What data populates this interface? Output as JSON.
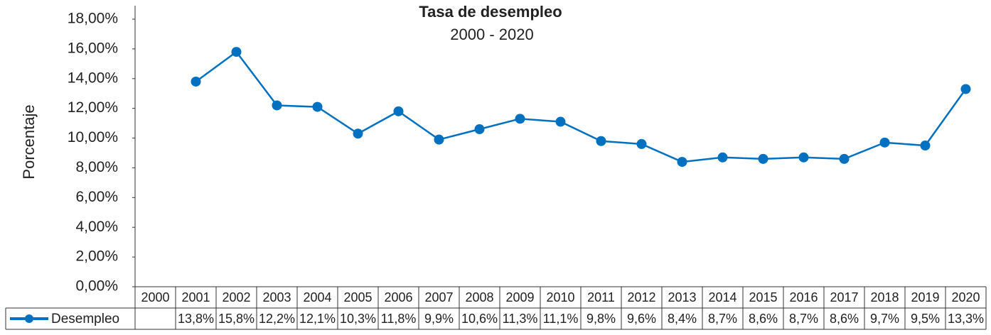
{
  "chart_data": {
    "type": "line",
    "title": "Tasa de desempleo",
    "subtitle": "2000 - 2020",
    "y_label": "Porcentaje",
    "categories": [
      "2000",
      "2001",
      "2002",
      "2003",
      "2004",
      "2005",
      "2006",
      "2007",
      "2008",
      "2009",
      "2010",
      "2011",
      "2012",
      "2013",
      "2014",
      "2015",
      "2016",
      "2017",
      "2018",
      "2019",
      "2020"
    ],
    "series": [
      {
        "name": "Desempleo",
        "color": "#0070c0",
        "values": [
          null,
          13.8,
          15.8,
          12.2,
          12.1,
          10.3,
          11.8,
          9.9,
          10.6,
          11.3,
          11.1,
          9.8,
          9.6,
          8.4,
          8.7,
          8.6,
          8.7,
          8.6,
          9.7,
          9.5,
          13.3
        ],
        "value_labels": [
          null,
          "13,8%",
          "15,8%",
          "12,2%",
          "12,1%",
          "10,3%",
          "11,8%",
          "9,9%",
          "10,6%",
          "11,3%",
          "11,1%",
          "9,8%",
          "9,6%",
          "8,4%",
          "8,7%",
          "8,6%",
          "8,7%",
          "8,6%",
          "9,7%",
          "9,5%",
          "13,3%"
        ]
      }
    ],
    "ylim": [
      0,
      18
    ],
    "yticks": [
      {
        "value": 0,
        "label": "0,00%"
      },
      {
        "value": 2,
        "label": "2,00%"
      },
      {
        "value": 4,
        "label": "4,00%"
      },
      {
        "value": 6,
        "label": "6,00%"
      },
      {
        "value": 8,
        "label": "8,00%"
      },
      {
        "value": 10,
        "label": "10,00%"
      },
      {
        "value": 12,
        "label": "12,00%"
      },
      {
        "value": 14,
        "label": "14,00%"
      },
      {
        "value": 16,
        "label": "16,00%"
      },
      {
        "value": 18,
        "label": "18,00%"
      }
    ]
  }
}
